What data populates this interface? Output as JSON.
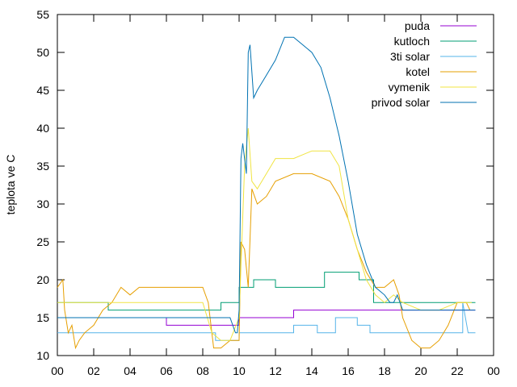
{
  "chart_data": {
    "type": "line",
    "ylabel": "teplota ve C",
    "xlabel": "",
    "xlim": [
      0,
      24
    ],
    "ylim": [
      10,
      55
    ],
    "x_tick_labels": [
      "00",
      "02",
      "04",
      "06",
      "08",
      "10",
      "12",
      "14",
      "16",
      "18",
      "20",
      "22",
      "00"
    ],
    "y_tick_labels": [
      "10",
      "15",
      "20",
      "25",
      "30",
      "35",
      "40",
      "45",
      "50",
      "55"
    ],
    "grid": false,
    "legend_position": "top-right",
    "series": [
      {
        "name": "puda",
        "color": "#9400d3",
        "x": [
          0,
          4.3,
          4.3,
          6,
          6,
          10,
          10,
          13,
          13,
          19,
          19,
          23
        ],
        "y": [
          15,
          15,
          15,
          15,
          14,
          14,
          15,
          15,
          16,
          16,
          16,
          16
        ]
      },
      {
        "name": "kutloch",
        "color": "#009e73",
        "x": [
          0,
          2.8,
          2.8,
          9,
          9,
          10,
          10,
          10.8,
          10.8,
          12,
          12,
          14.7,
          14.7,
          16.6,
          16.6,
          17.4,
          17.4,
          23
        ],
        "y": [
          17,
          17,
          16,
          16,
          17,
          17,
          19,
          19,
          20,
          20,
          19,
          19,
          21,
          21,
          20,
          20,
          17,
          17
        ]
      },
      {
        "name": "3ti solar",
        "color": "#56b4e9",
        "x": [
          0,
          8.7,
          8.7,
          10,
          10,
          13,
          13,
          14.3,
          14.3,
          15.3,
          15.3,
          16.5,
          16.5,
          17.2,
          17.2,
          22.3,
          22.3,
          22.6,
          23
        ],
        "y": [
          13,
          13,
          12,
          12,
          13,
          13,
          14,
          14,
          13,
          13,
          15,
          15,
          14,
          14,
          13,
          13,
          17,
          13,
          13
        ]
      },
      {
        "name": "kotel",
        "color": "#e69f00",
        "x": [
          0,
          0.3,
          0.4,
          0.6,
          0.8,
          1.0,
          1.2,
          1.5,
          2.0,
          2.5,
          3.0,
          3.5,
          4.0,
          4.5,
          5.0,
          6.0,
          7.0,
          8.0,
          8.3,
          8.6,
          9.0,
          9.5,
          10.0,
          10.1,
          10.3,
          10.5,
          10.7,
          11.0,
          11.5,
          12.0,
          13.0,
          14.0,
          15.0,
          15.5,
          16.0,
          16.5,
          17.0,
          17.5,
          18.0,
          18.5,
          18.8,
          19.0,
          19.5,
          20.0,
          20.5,
          21.0,
          21.5,
          22.0,
          22.5,
          22.7
        ],
        "y": [
          19,
          20,
          16,
          13,
          14,
          11,
          12,
          13,
          14,
          16,
          17,
          19,
          18,
          19,
          19,
          19,
          19,
          19,
          17,
          11,
          11,
          12,
          12,
          25,
          24,
          19,
          32,
          30,
          31,
          33,
          34,
          34,
          33,
          31,
          28,
          24,
          21,
          19,
          19,
          20,
          18,
          15,
          12,
          11,
          11,
          12,
          14,
          17,
          17,
          16
        ]
      },
      {
        "name": "vymenik",
        "color": "#f0e442",
        "x": [
          0,
          1.0,
          1.5,
          2.0,
          3.0,
          4.0,
          5.0,
          6.0,
          7.0,
          8.0,
          8.5,
          9.0,
          9.5,
          10.0,
          10.3,
          10.5,
          10.7,
          11.0,
          11.5,
          12.0,
          13.0,
          14.0,
          15.0,
          15.5,
          16.0,
          16.5,
          17.0,
          17.5,
          18.0,
          18.5,
          19.0,
          20.0,
          21.0,
          22.0,
          22.8
        ],
        "y": [
          17,
          17,
          17,
          17,
          17,
          17,
          17,
          17,
          17,
          17,
          13,
          12,
          12,
          15,
          35,
          40,
          33,
          32,
          34,
          36,
          36,
          37,
          37,
          35,
          28,
          24,
          20,
          18,
          17,
          18,
          17,
          16,
          16,
          17,
          17
        ]
      },
      {
        "name": "privod solar",
        "color": "#0072b2",
        "x": [
          0,
          8.5,
          9.5,
          9.8,
          9.9,
          10.0,
          10.1,
          10.2,
          10.4,
          10.5,
          10.6,
          10.8,
          11.0,
          11.5,
          12.0,
          12.5,
          13.0,
          13.5,
          14.0,
          14.5,
          15.0,
          15.5,
          16.0,
          16.5,
          17.0,
          17.5,
          18.0,
          18.3,
          18.5,
          18.7,
          19.0,
          20.0,
          21.0,
          22.0,
          23.0
        ],
        "y": [
          15,
          15,
          15,
          13,
          13,
          16,
          36,
          38,
          34,
          50,
          51,
          44,
          45,
          47,
          49,
          52,
          52,
          51,
          50,
          48,
          44,
          39,
          33,
          26,
          22,
          19,
          18,
          17,
          17,
          18,
          16,
          16,
          16,
          16,
          16
        ]
      }
    ]
  }
}
